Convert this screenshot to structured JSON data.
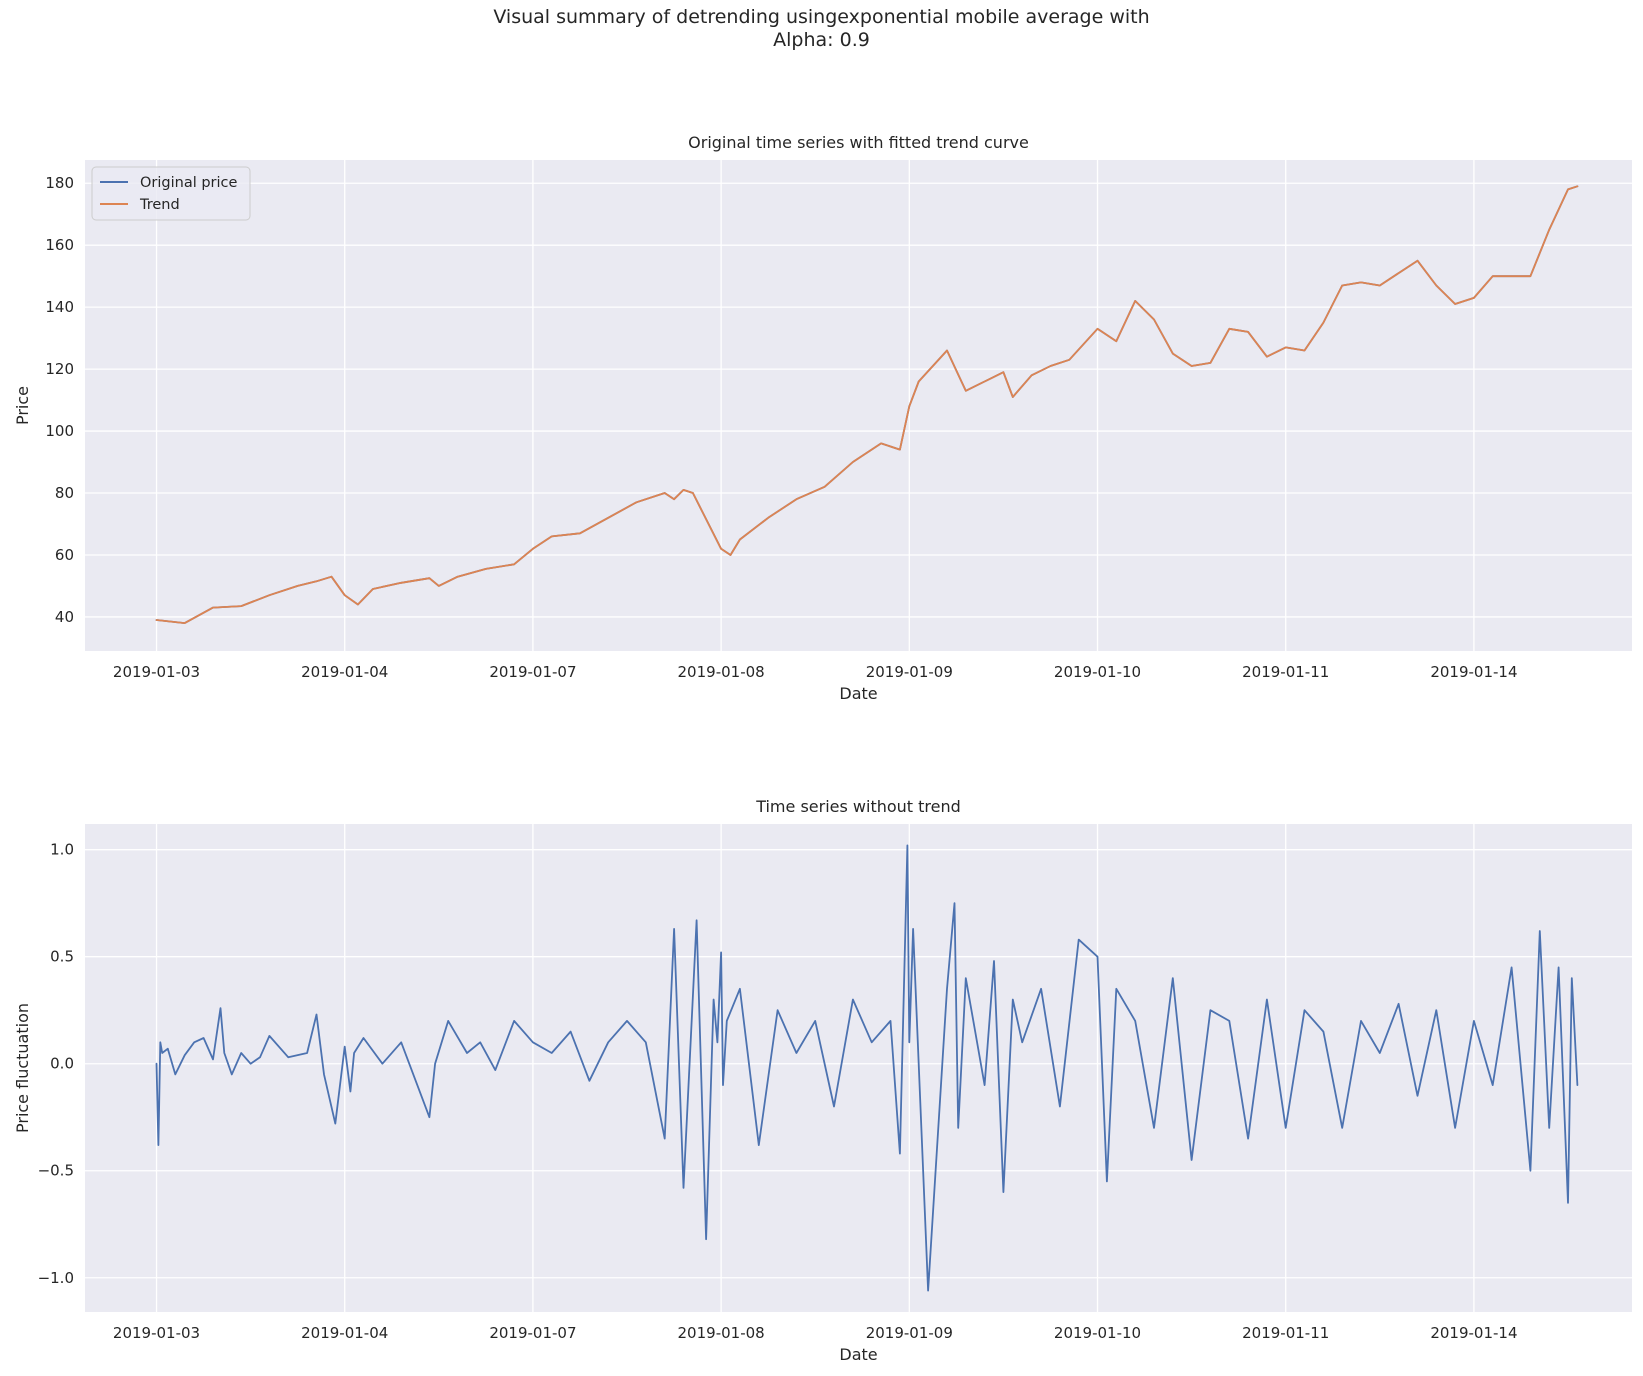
{
  "figure": {
    "suptitle_line1": "Visual summary of detrending usingexponential mobile average with",
    "suptitle_line2": "Alpha: 0.9"
  },
  "colors": {
    "background": "#eaeaf2",
    "grid": "#ffffff",
    "original": "#4c72b0",
    "trend": "#dd8452"
  },
  "chart_data": [
    {
      "type": "line",
      "title": "Original time series with fitted trend curve",
      "xlabel": "Date",
      "ylabel": "Price",
      "xlim": [
        -0.38,
        7.84
      ],
      "ylim": [
        29,
        187.5
      ],
      "yticks": [
        40,
        60,
        80,
        100,
        120,
        140,
        160,
        180
      ],
      "xtick_labels": [
        "2019-01-03",
        "2019-01-04",
        "2019-01-07",
        "2019-01-08",
        "2019-01-09",
        "2019-01-10",
        "2019-01-11",
        "2019-01-14"
      ],
      "legend": {
        "placement": "upper-left",
        "entries": [
          "Original price",
          "Trend"
        ]
      },
      "x": [
        0.0,
        0.15,
        0.3,
        0.45,
        0.6,
        0.75,
        0.85,
        0.93,
        1.0,
        1.07,
        1.15,
        1.3,
        1.45,
        1.5,
        1.6,
        1.75,
        1.9,
        2.0,
        2.1,
        2.25,
        2.4,
        2.55,
        2.7,
        2.75,
        2.8,
        2.85,
        2.9,
        3.0,
        3.05,
        3.1,
        3.25,
        3.4,
        3.55,
        3.7,
        3.85,
        3.95,
        4.0,
        4.05,
        4.2,
        4.3,
        4.4,
        4.5,
        4.55,
        4.65,
        4.75,
        4.85,
        5.0,
        5.1,
        5.2,
        5.3,
        5.4,
        5.5,
        5.6,
        5.7,
        5.8,
        5.9,
        6.0,
        6.1,
        6.2,
        6.3,
        6.4,
        6.5,
        6.6,
        6.7,
        6.8,
        6.9,
        7.0,
        7.1,
        7.2,
        7.3,
        7.4,
        7.5,
        7.55
      ],
      "series": [
        {
          "name": "Original price",
          "values": [
            39,
            38,
            43,
            43.5,
            47,
            50,
            51.5,
            53,
            47,
            44,
            49,
            51,
            52.5,
            50,
            53,
            55.5,
            57,
            62,
            66,
            67,
            72,
            77,
            80,
            78,
            81,
            80,
            74,
            62,
            60,
            65,
            72,
            78,
            82,
            90,
            96,
            94,
            108,
            116,
            126,
            113,
            116,
            119,
            111,
            118,
            121,
            123,
            133,
            129,
            142,
            136,
            125,
            121,
            122,
            133,
            132,
            124,
            127,
            126,
            135,
            147,
            148,
            147,
            151,
            155,
            147,
            141,
            143,
            150,
            150,
            150,
            165,
            178,
            179
          ]
        },
        {
          "name": "Trend",
          "values": [
            39,
            38,
            43,
            43.5,
            47,
            50,
            51.5,
            53,
            47,
            44,
            49,
            51,
            52.5,
            50,
            53,
            55.5,
            57,
            62,
            66,
            67,
            72,
            77,
            80,
            78,
            81,
            80,
            74,
            62,
            60,
            65,
            72,
            78,
            82,
            90,
            96,
            94,
            108,
            116,
            126,
            113,
            116,
            119,
            111,
            118,
            121,
            123,
            133,
            129,
            142,
            136,
            125,
            121,
            122,
            133,
            132,
            124,
            127,
            126,
            135,
            147,
            148,
            147,
            151,
            155,
            147,
            141,
            143,
            150,
            150,
            150,
            165,
            178,
            179
          ]
        }
      ]
    },
    {
      "type": "line",
      "title": "Time series without trend",
      "xlabel": "Date",
      "ylabel": "Price fluctuation",
      "xlim": [
        -0.38,
        7.84
      ],
      "ylim": [
        -1.16,
        1.12
      ],
      "yticks": [
        -1.0,
        -0.5,
        0.0,
        0.5,
        1.0
      ],
      "ytick_labels": [
        "−1.0",
        "−0.5",
        "0.0",
        "0.5",
        "1.0"
      ],
      "xtick_labels": [
        "2019-01-03",
        "2019-01-04",
        "2019-01-07",
        "2019-01-08",
        "2019-01-09",
        "2019-01-10",
        "2019-01-11",
        "2019-01-14"
      ],
      "series": [
        {
          "name": "Price fluctuation",
          "x": [
            0.0,
            0.01,
            0.02,
            0.03,
            0.06,
            0.1,
            0.15,
            0.2,
            0.25,
            0.3,
            0.34,
            0.36,
            0.4,
            0.45,
            0.5,
            0.55,
            0.6,
            0.7,
            0.8,
            0.85,
            0.89,
            0.95,
            1.0,
            1.03,
            1.05,
            1.1,
            1.2,
            1.3,
            1.45,
            1.48,
            1.55,
            1.65,
            1.72,
            1.8,
            1.9,
            2.0,
            2.1,
            2.2,
            2.3,
            2.4,
            2.5,
            2.6,
            2.7,
            2.75,
            2.8,
            2.87,
            2.92,
            2.96,
            2.98,
            3.0,
            3.01,
            3.03,
            3.1,
            3.2,
            3.3,
            3.4,
            3.5,
            3.6,
            3.7,
            3.8,
            3.9,
            3.95,
            3.99,
            4.0,
            4.02,
            4.1,
            4.2,
            4.24,
            4.26,
            4.3,
            4.4,
            4.45,
            4.5,
            4.55,
            4.6,
            4.7,
            4.8,
            4.9,
            5.0,
            5.05,
            5.1,
            5.2,
            5.3,
            5.4,
            5.5,
            5.6,
            5.7,
            5.8,
            5.9,
            6.0,
            6.1,
            6.2,
            6.3,
            6.4,
            6.5,
            6.6,
            6.7,
            6.8,
            6.9,
            7.0,
            7.1,
            7.2,
            7.3,
            7.35,
            7.4,
            7.45,
            7.5,
            7.52,
            7.55
          ],
          "values": [
            0.0,
            -0.38,
            0.1,
            0.05,
            0.07,
            -0.05,
            0.04,
            0.1,
            0.12,
            0.02,
            0.26,
            0.05,
            -0.05,
            0.05,
            0.0,
            0.03,
            0.13,
            0.03,
            0.05,
            0.23,
            -0.05,
            -0.28,
            0.08,
            -0.13,
            0.05,
            0.12,
            0.0,
            0.1,
            -0.25,
            0.0,
            0.2,
            0.05,
            0.1,
            -0.03,
            0.2,
            0.1,
            0.05,
            0.15,
            -0.08,
            0.1,
            0.2,
            0.1,
            -0.35,
            0.63,
            -0.58,
            0.67,
            -0.82,
            0.3,
            0.1,
            0.52,
            -0.1,
            0.2,
            0.35,
            -0.38,
            0.25,
            0.05,
            0.2,
            -0.2,
            0.3,
            0.1,
            0.2,
            -0.42,
            1.02,
            0.1,
            0.63,
            -1.06,
            0.35,
            0.75,
            -0.3,
            0.4,
            -0.1,
            0.48,
            -0.6,
            0.3,
            0.1,
            0.35,
            -0.2,
            0.58,
            0.5,
            -0.55,
            0.35,
            0.2,
            -0.3,
            0.4,
            -0.45,
            0.25,
            0.2,
            -0.35,
            0.3,
            -0.3,
            0.25,
            0.15,
            -0.3,
            0.2,
            0.05,
            0.28,
            -0.15,
            0.25,
            -0.3,
            0.2,
            -0.1,
            0.45,
            -0.5,
            0.62,
            -0.3,
            0.45,
            -0.65,
            0.4,
            -0.1
          ]
        }
      ]
    }
  ]
}
